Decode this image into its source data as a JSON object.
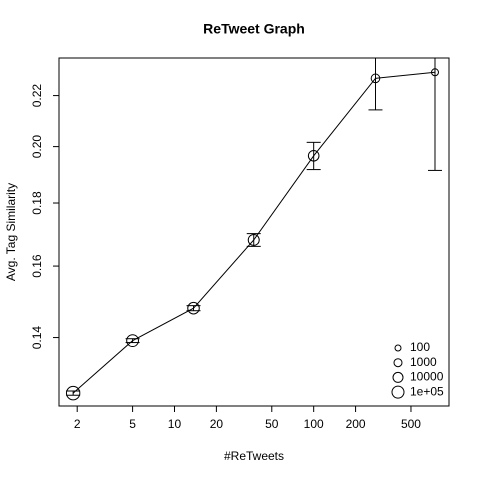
{
  "chart_data": {
    "type": "scatter",
    "title": "ReTweet Graph",
    "x_label": "#ReTweets",
    "y_label": "Avg. Tag Similarity",
    "log_x": true,
    "log_y": true,
    "xlim": [
      1.48,
      938
    ],
    "ylim": [
      0.1232,
      0.236
    ],
    "xticks": [
      2,
      5,
      10,
      20,
      50,
      100,
      200,
      500
    ],
    "yticks": [
      0.14,
      0.16,
      0.18,
      {
        "value": 0.2,
        "label": "0.20"
      },
      0.22
    ],
    "series": [
      {
        "color": "#000000",
        "x": [
          1.87,
          5,
          13.7,
          37.1,
          100,
          278,
          744
        ],
        "values": [
          0.1262,
          0.1392,
          0.1479,
          0.168,
          0.1966,
          0.2272,
          0.2298
        ],
        "errors": [
          0.0005,
          0.0005,
          0.0007,
          0.002,
          0.005,
          0.013,
          0.0385
        ],
        "sizes": [
          500000,
          80000,
          60000,
          30000,
          20000,
          2000,
          300
        ]
      }
    ],
    "size_legend": {
      "position": "bottom-right",
      "entries": [
        100,
        1000,
        10000,
        {
          "value": 100000,
          "label": "1e+05"
        }
      ]
    }
  }
}
